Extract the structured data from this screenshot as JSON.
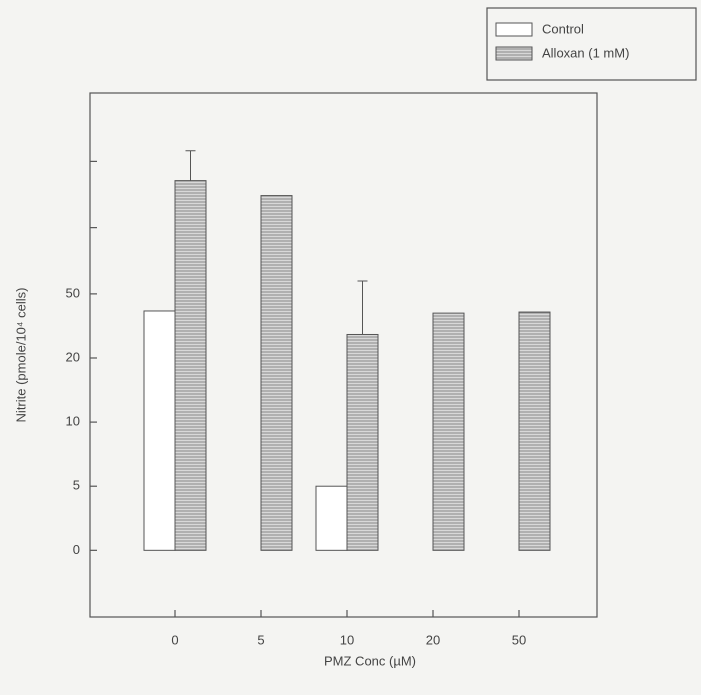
{
  "chart_data": {
    "type": "bar",
    "xlabel": "PMZ Conc (µM)",
    "ylabel": "Nitrite (pmole/10⁴ cells)",
    "categories": [
      "0",
      "5",
      "10",
      "20",
      "50"
    ],
    "series": [
      {
        "name": "Control",
        "color": "#ffffff",
        "hatch": false,
        "values": [
          42,
          0,
          5,
          null,
          null
        ],
        "errors": [
          null,
          null,
          null,
          null,
          null
        ]
      },
      {
        "name": "Alloxan (1 mM)",
        "color": "#bdbdbd",
        "hatch": true,
        "values": [
          103,
          96,
          31,
          41,
          41.5
        ],
        "errors": [
          14,
          null,
          25,
          null,
          null
        ]
      }
    ],
    "yscale": "evenly-spaced-ticks",
    "ylim": [
      -5.2,
      144
    ],
    "yticks": [
      0,
      5,
      10,
      20,
      50
    ],
    "minor_yticks": [
      81,
      112
    ],
    "grid": false,
    "legend": "upper right"
  }
}
